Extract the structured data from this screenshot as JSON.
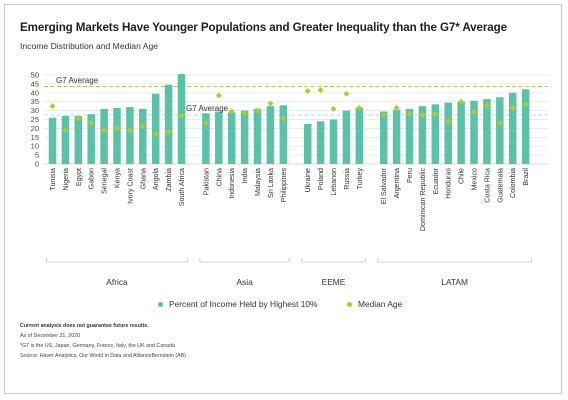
{
  "page": {
    "title": "Emerging Markets Have Younger Populations and Greater Inequality than the G7* Average",
    "subtitle": "Income Distribution and Median Age"
  },
  "chart_data": {
    "type": "bar",
    "title": "Emerging Markets Have Younger Populations and Greater Inequality than the G7* Average",
    "subtitle": "Income Distribution and Median Age",
    "ylim": [
      0,
      50
    ],
    "yticks": [
      0,
      5,
      10,
      15,
      20,
      25,
      30,
      35,
      40,
      45,
      50
    ],
    "grid": true,
    "legend_position": "bottom",
    "colors": {
      "bar": "#5bc2a9",
      "median_age": "#b5c92f",
      "g7_income_line": "#a8c23b",
      "g7_age_line": "#a9d8ea"
    },
    "groups": [
      {
        "name": "Africa",
        "categories": [
          "Tunisia",
          "Nigeria",
          "Egypt",
          "Gabon",
          "Senegal",
          "Kenya",
          "Ivory Coast",
          "Ghana",
          "Angola",
          "Zambia",
          "South Africa"
        ]
      },
      {
        "name": "Asia",
        "categories": [
          "Pakistan",
          "China",
          "Indonesia",
          "India",
          "Malaysia",
          "Sri Lanka",
          "Philippines"
        ]
      },
      {
        "name": "EEME",
        "categories": [
          "Ukraine",
          "Poland",
          "Lebanon",
          "Russia",
          "Turkey"
        ]
      },
      {
        "name": "LATAM",
        "categories": [
          "El Salvador",
          "Argentina",
          "Peru",
          "Dominican Republic",
          "Ecuador",
          "Honduras",
          "Chile",
          "Mexico",
          "Costa Rica",
          "Guatemala",
          "Colombia",
          "Brazil"
        ]
      }
    ],
    "series": [
      {
        "name": "Percent of Income Held by Highest 10%",
        "type": "bar",
        "values": [
          26,
          27,
          27,
          28,
          31,
          31.5,
          32,
          31,
          39.5,
          44.5,
          50.5,
          28.5,
          29.5,
          29,
          30,
          31,
          32.5,
          33,
          22.5,
          24,
          25,
          30,
          31.5,
          29.5,
          30.5,
          31,
          32.5,
          33.5,
          34.5,
          35,
          35.5,
          36.5,
          37.5,
          40,
          42
        ]
      },
      {
        "name": "Median Age",
        "type": "scatter",
        "values": [
          32.5,
          19,
          25.5,
          23,
          19,
          20,
          19,
          21.5,
          17,
          18,
          27,
          23,
          38.5,
          29.5,
          28.5,
          30,
          34,
          25.5,
          41,
          41.5,
          31,
          39.5,
          31.5,
          27.5,
          31.5,
          28,
          27.5,
          28,
          24,
          35,
          29,
          33,
          23,
          31.5,
          33.5
        ]
      }
    ],
    "annotations": [
      {
        "text": "G7 Average",
        "applies_to": "Percent of Income Held by Highest 10%",
        "value": 43.5
      },
      {
        "text": "G7 Average",
        "applies_to": "Median Age",
        "value": 27.5
      }
    ]
  },
  "legend": {
    "bar_label": "Percent of Income Held by Highest 10%",
    "dot_label": "Median Age"
  },
  "notes": {
    "line1": "Current analysis does not guarantee future results.",
    "line2": "As of December 31, 2020",
    "line3": "*G7 is the US, Japan, Germany, France, Italy, the UK and Canada",
    "line4": "Source: Haver Analytics, Our World in Data and AllianceBernstein (AB)"
  }
}
